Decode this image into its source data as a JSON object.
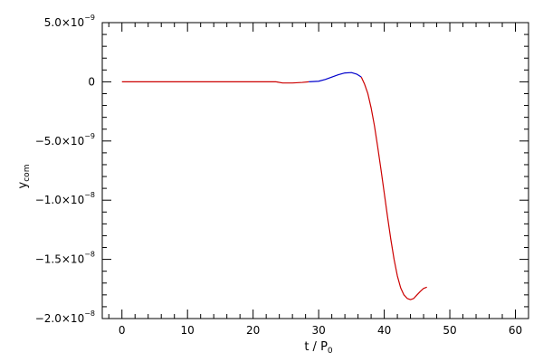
{
  "chart_data": {
    "type": "line",
    "xlabel": "t / P",
    "xlabel_sub": "0",
    "ylabel": "y",
    "ylabel_sub": "com",
    "xlim": [
      -3,
      62
    ],
    "ylim": [
      -2e-08,
      5e-09
    ],
    "x_ticks": [
      {
        "value": 0,
        "label": "0"
      },
      {
        "value": 10,
        "label": "10"
      },
      {
        "value": 20,
        "label": "20"
      },
      {
        "value": 30,
        "label": "30"
      },
      {
        "value": 40,
        "label": "40"
      },
      {
        "value": 50,
        "label": "50"
      },
      {
        "value": 60,
        "label": "60"
      }
    ],
    "x_minor_step": 2,
    "y_ticks": [
      {
        "value": 5e-09,
        "mantissa": "5.0×10",
        "exponent": "−9"
      },
      {
        "value": 0,
        "mantissa": "0",
        "exponent": ""
      },
      {
        "value": -5e-09,
        "mantissa": "−5.0×10",
        "exponent": "−9"
      },
      {
        "value": -1e-08,
        "mantissa": "−1.0×10",
        "exponent": "−8"
      },
      {
        "value": -1.5e-08,
        "mantissa": "−1.5×10",
        "exponent": "−8"
      },
      {
        "value": -2e-08,
        "mantissa": "−2.0×10",
        "exponent": "−8"
      }
    ],
    "y_minor_step": 1e-09,
    "grid": false,
    "series": [
      {
        "color": "#cc0000",
        "x": [
          0,
          5,
          10,
          15,
          20,
          23.5
        ],
        "y": [
          0,
          0,
          0,
          0,
          0,
          0
        ]
      },
      {
        "color": "#cc0000",
        "x": [
          23.5,
          24.5,
          26,
          27.5,
          28.5
        ],
        "y": [
          0,
          -1e-10,
          -1e-10,
          -5e-11,
          0
        ]
      },
      {
        "color": "#0000cc",
        "x": [
          28.5,
          30,
          31,
          32,
          33,
          34,
          35,
          35.8,
          36.5
        ],
        "y": [
          0,
          5e-11,
          2e-10,
          4e-10,
          6e-10,
          7.5e-10,
          7.8e-10,
          6.5e-10,
          4e-10
        ]
      },
      {
        "color": "#cc0000",
        "x": [
          36.5,
          37,
          37.5,
          38,
          38.5,
          39,
          39.5,
          40,
          40.5,
          41,
          41.5,
          42,
          42.5,
          43,
          43.5,
          44,
          44.5,
          45,
          45.5,
          46,
          46.5
        ],
        "y": [
          4e-10,
          -2e-10,
          -1e-09,
          -2.2e-09,
          -3.7e-09,
          -5.5e-09,
          -7.4e-09,
          -9.4e-09,
          -1.14e-08,
          -1.33e-08,
          -1.5e-08,
          -1.64e-08,
          -1.74e-08,
          -1.8e-08,
          -1.83e-08,
          -1.84e-08,
          -1.83e-08,
          -1.8e-08,
          -1.77e-08,
          -1.745e-08,
          -1.735e-08
        ]
      }
    ]
  }
}
